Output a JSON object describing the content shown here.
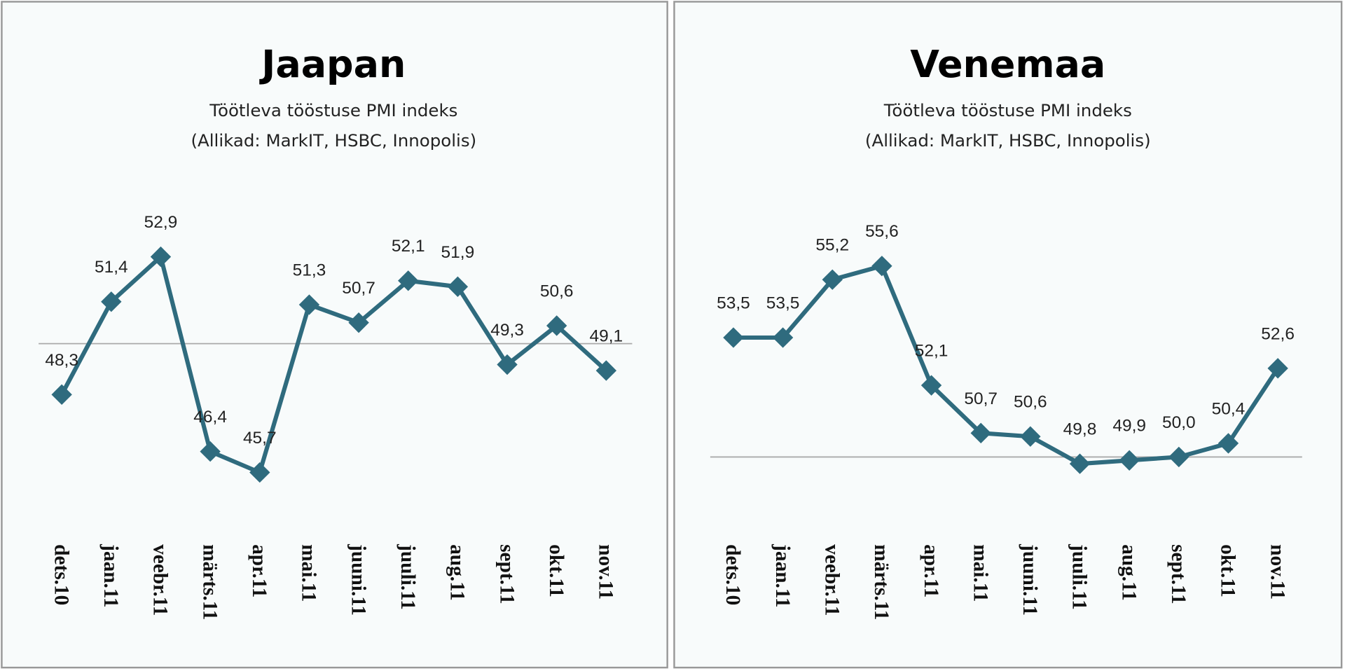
{
  "chart_data": [
    {
      "type": "line",
      "title": "Jaapan",
      "subtitle": "Töötleva tööstuse PMI indeks",
      "note": "(Allikad: MarkIT, HSBC, Innopolis)",
      "categories": [
        "dets.10",
        "jaan.11",
        "veebr.11",
        "märts.11",
        "apr.11",
        "mai.11",
        "juuni.11",
        "juuli.11",
        "aug.11",
        "sept.11",
        "okt.11",
        "nov.11"
      ],
      "values": [
        48.3,
        51.4,
        52.9,
        46.4,
        45.7,
        51.3,
        50.7,
        52.1,
        51.9,
        49.3,
        50.6,
        49.1
      ],
      "value_labels": [
        "48,3",
        "51,4",
        "52,9",
        "46,4",
        "45,7",
        "51,3",
        "50,7",
        "52,1",
        "51,9",
        "49,3",
        "50,6",
        "49,1"
      ],
      "color": "#2f6b7e",
      "ylim": [
        44,
        54
      ],
      "reference_line": 50
    },
    {
      "type": "line",
      "title": "Venemaa",
      "subtitle": "Töötleva tööstuse PMI indeks",
      "note": "(Allikad: MarkIT, HSBC, Innopolis)",
      "categories": [
        "dets.10",
        "jaan.11",
        "veebr.11",
        "märts.11",
        "apr.11",
        "mai.11",
        "juuni.11",
        "juuli.11",
        "aug.11",
        "sept.11",
        "okt.11",
        "nov.11"
      ],
      "values": [
        53.5,
        53.5,
        55.2,
        55.6,
        52.1,
        50.7,
        50.6,
        49.8,
        49.9,
        50.0,
        50.4,
        52.6
      ],
      "value_labels": [
        "53,5",
        "53,5",
        "55,2",
        "55,6",
        "52,1",
        "50,7",
        "50,6",
        "49,8",
        "49,9",
        "50,0",
        "50,4",
        "52,6"
      ],
      "color": "#2f6b7e",
      "ylim": [
        48,
        57
      ],
      "reference_line": 50
    }
  ]
}
